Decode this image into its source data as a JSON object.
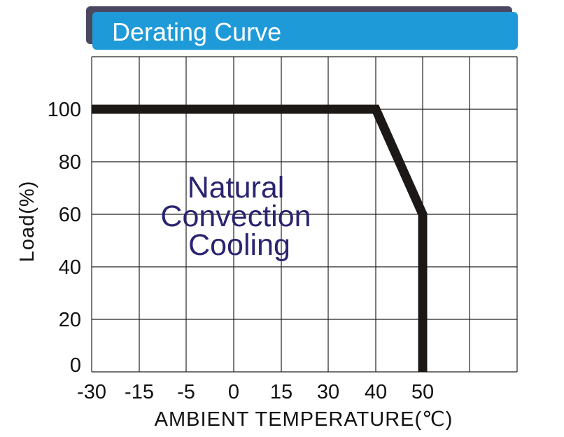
{
  "colors": {
    "banner": "#1f9ad8",
    "banner_shadow": "#4a4860",
    "curve": "#1c1816",
    "annotation": "#2a2470",
    "grid": "#222222"
  },
  "chart_data": {
    "type": "line",
    "title": "Derating Curve",
    "xlabel": "AMBIENT TEMPERATURE(℃)",
    "ylabel": "Load(%)",
    "x_tick_labels": [
      "-30",
      "-15",
      "-5",
      "0",
      "15",
      "30",
      "40",
      "50"
    ],
    "y_tick_labels": [
      "100",
      "80",
      "60",
      "40",
      "20",
      "0"
    ],
    "grid": true,
    "annotation": [
      "Natural",
      "Convection",
      "Cooling"
    ],
    "series": [
      {
        "x": [
          "-30",
          "40",
          "50",
          "50"
        ],
        "y": [
          100,
          100,
          60,
          0
        ]
      }
    ]
  }
}
